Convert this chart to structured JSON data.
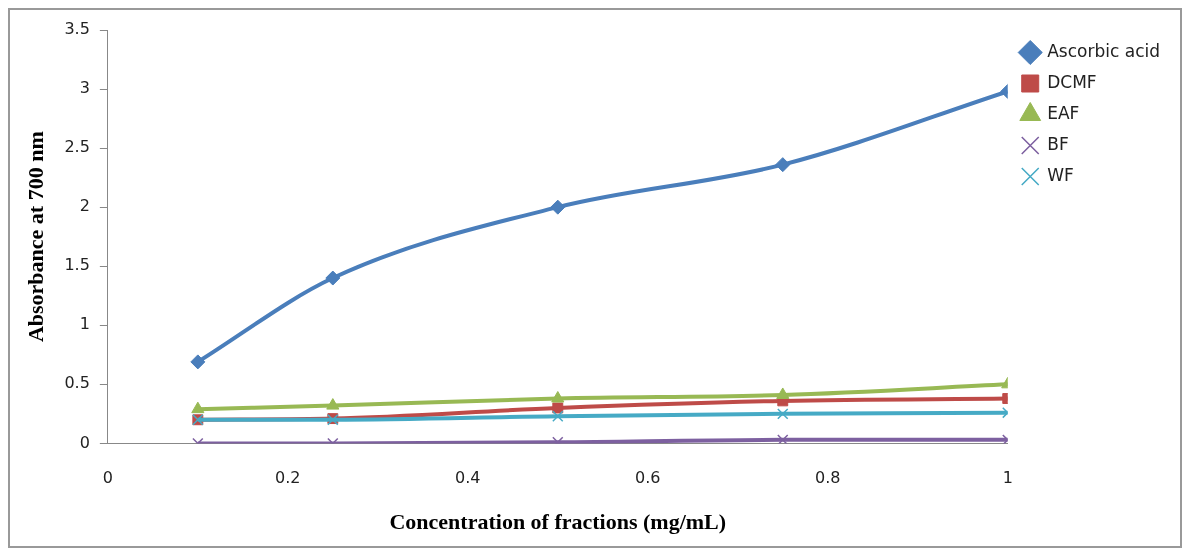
{
  "chart_data": {
    "type": "line",
    "xlabel": "Concentration of fractions (mg/mL)",
    "ylabel": "Absorbance at 700 nm",
    "xlim": [
      0,
      1
    ],
    "xticks": [
      0,
      0.2,
      0.4,
      0.6,
      0.8,
      1
    ],
    "ylim": [
      0,
      3.5
    ],
    "yticks": [
      0,
      0.5,
      1,
      1.5,
      2,
      2.5,
      3,
      3.5
    ],
    "grid": false,
    "legend": "top right",
    "series": [
      {
        "name": "Ascorbic acid",
        "color": "#4a7ebb",
        "marker": "diamond",
        "x": [
          0.1,
          0.25,
          0.5,
          0.75,
          1
        ],
        "values": [
          0.69,
          1.4,
          2.0,
          2.36,
          2.98
        ]
      },
      {
        "name": "DCMF",
        "color": "#be4b48",
        "marker": "square",
        "x": [
          0.1,
          0.25,
          0.5,
          0.75,
          1
        ],
        "values": [
          0.2,
          0.21,
          0.3,
          0.36,
          0.38
        ]
      },
      {
        "name": "EAF",
        "color": "#98b954",
        "marker": "triangle",
        "x": [
          0.1,
          0.25,
          0.5,
          0.75,
          1
        ],
        "values": [
          0.29,
          0.32,
          0.38,
          0.41,
          0.5
        ]
      },
      {
        "name": "BF",
        "color": "#7d60a0",
        "marker": "cross",
        "x": [
          0.1,
          0.25,
          0.5,
          0.75,
          1
        ],
        "values": [
          0,
          0,
          0.01,
          0.03,
          0.03
        ]
      },
      {
        "name": "WF",
        "color": "#46aac5",
        "marker": "cross",
        "x": [
          0.1,
          0.25,
          0.5,
          0.75,
          1
        ],
        "values": [
          0.2,
          0.2,
          0.23,
          0.25,
          0.26
        ]
      }
    ]
  }
}
